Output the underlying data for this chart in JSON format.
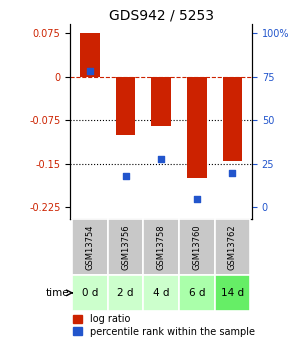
{
  "title": "GDS942 / 5253",
  "samples": [
    "GSM13754",
    "GSM13756",
    "GSM13758",
    "GSM13760",
    "GSM13762"
  ],
  "time_labels": [
    "0 d",
    "2 d",
    "4 d",
    "6 d",
    "14 d"
  ],
  "log_ratio": [
    0.075,
    -0.1,
    -0.085,
    -0.175,
    -0.145
  ],
  "percentile_rank": [
    78,
    18,
    28,
    5,
    20
  ],
  "ylim_left": [
    -0.245,
    0.09
  ],
  "yticks_left": [
    0.075,
    0,
    -0.075,
    -0.15,
    -0.225
  ],
  "yticks_right": [
    100,
    75,
    50,
    25,
    0
  ],
  "bar_color": "#cc2200",
  "dot_color": "#2255cc",
  "dotted_lines": [
    -0.075,
    -0.15
  ],
  "bar_width": 0.55,
  "title_fontsize": 10,
  "tick_fontsize": 7,
  "legend_fontsize": 7,
  "cell_color_gsm": "#c8c8c8",
  "time_row_shades": [
    "#ccffcc",
    "#ccffcc",
    "#ccffcc",
    "#aaffaa",
    "#66ee66"
  ]
}
